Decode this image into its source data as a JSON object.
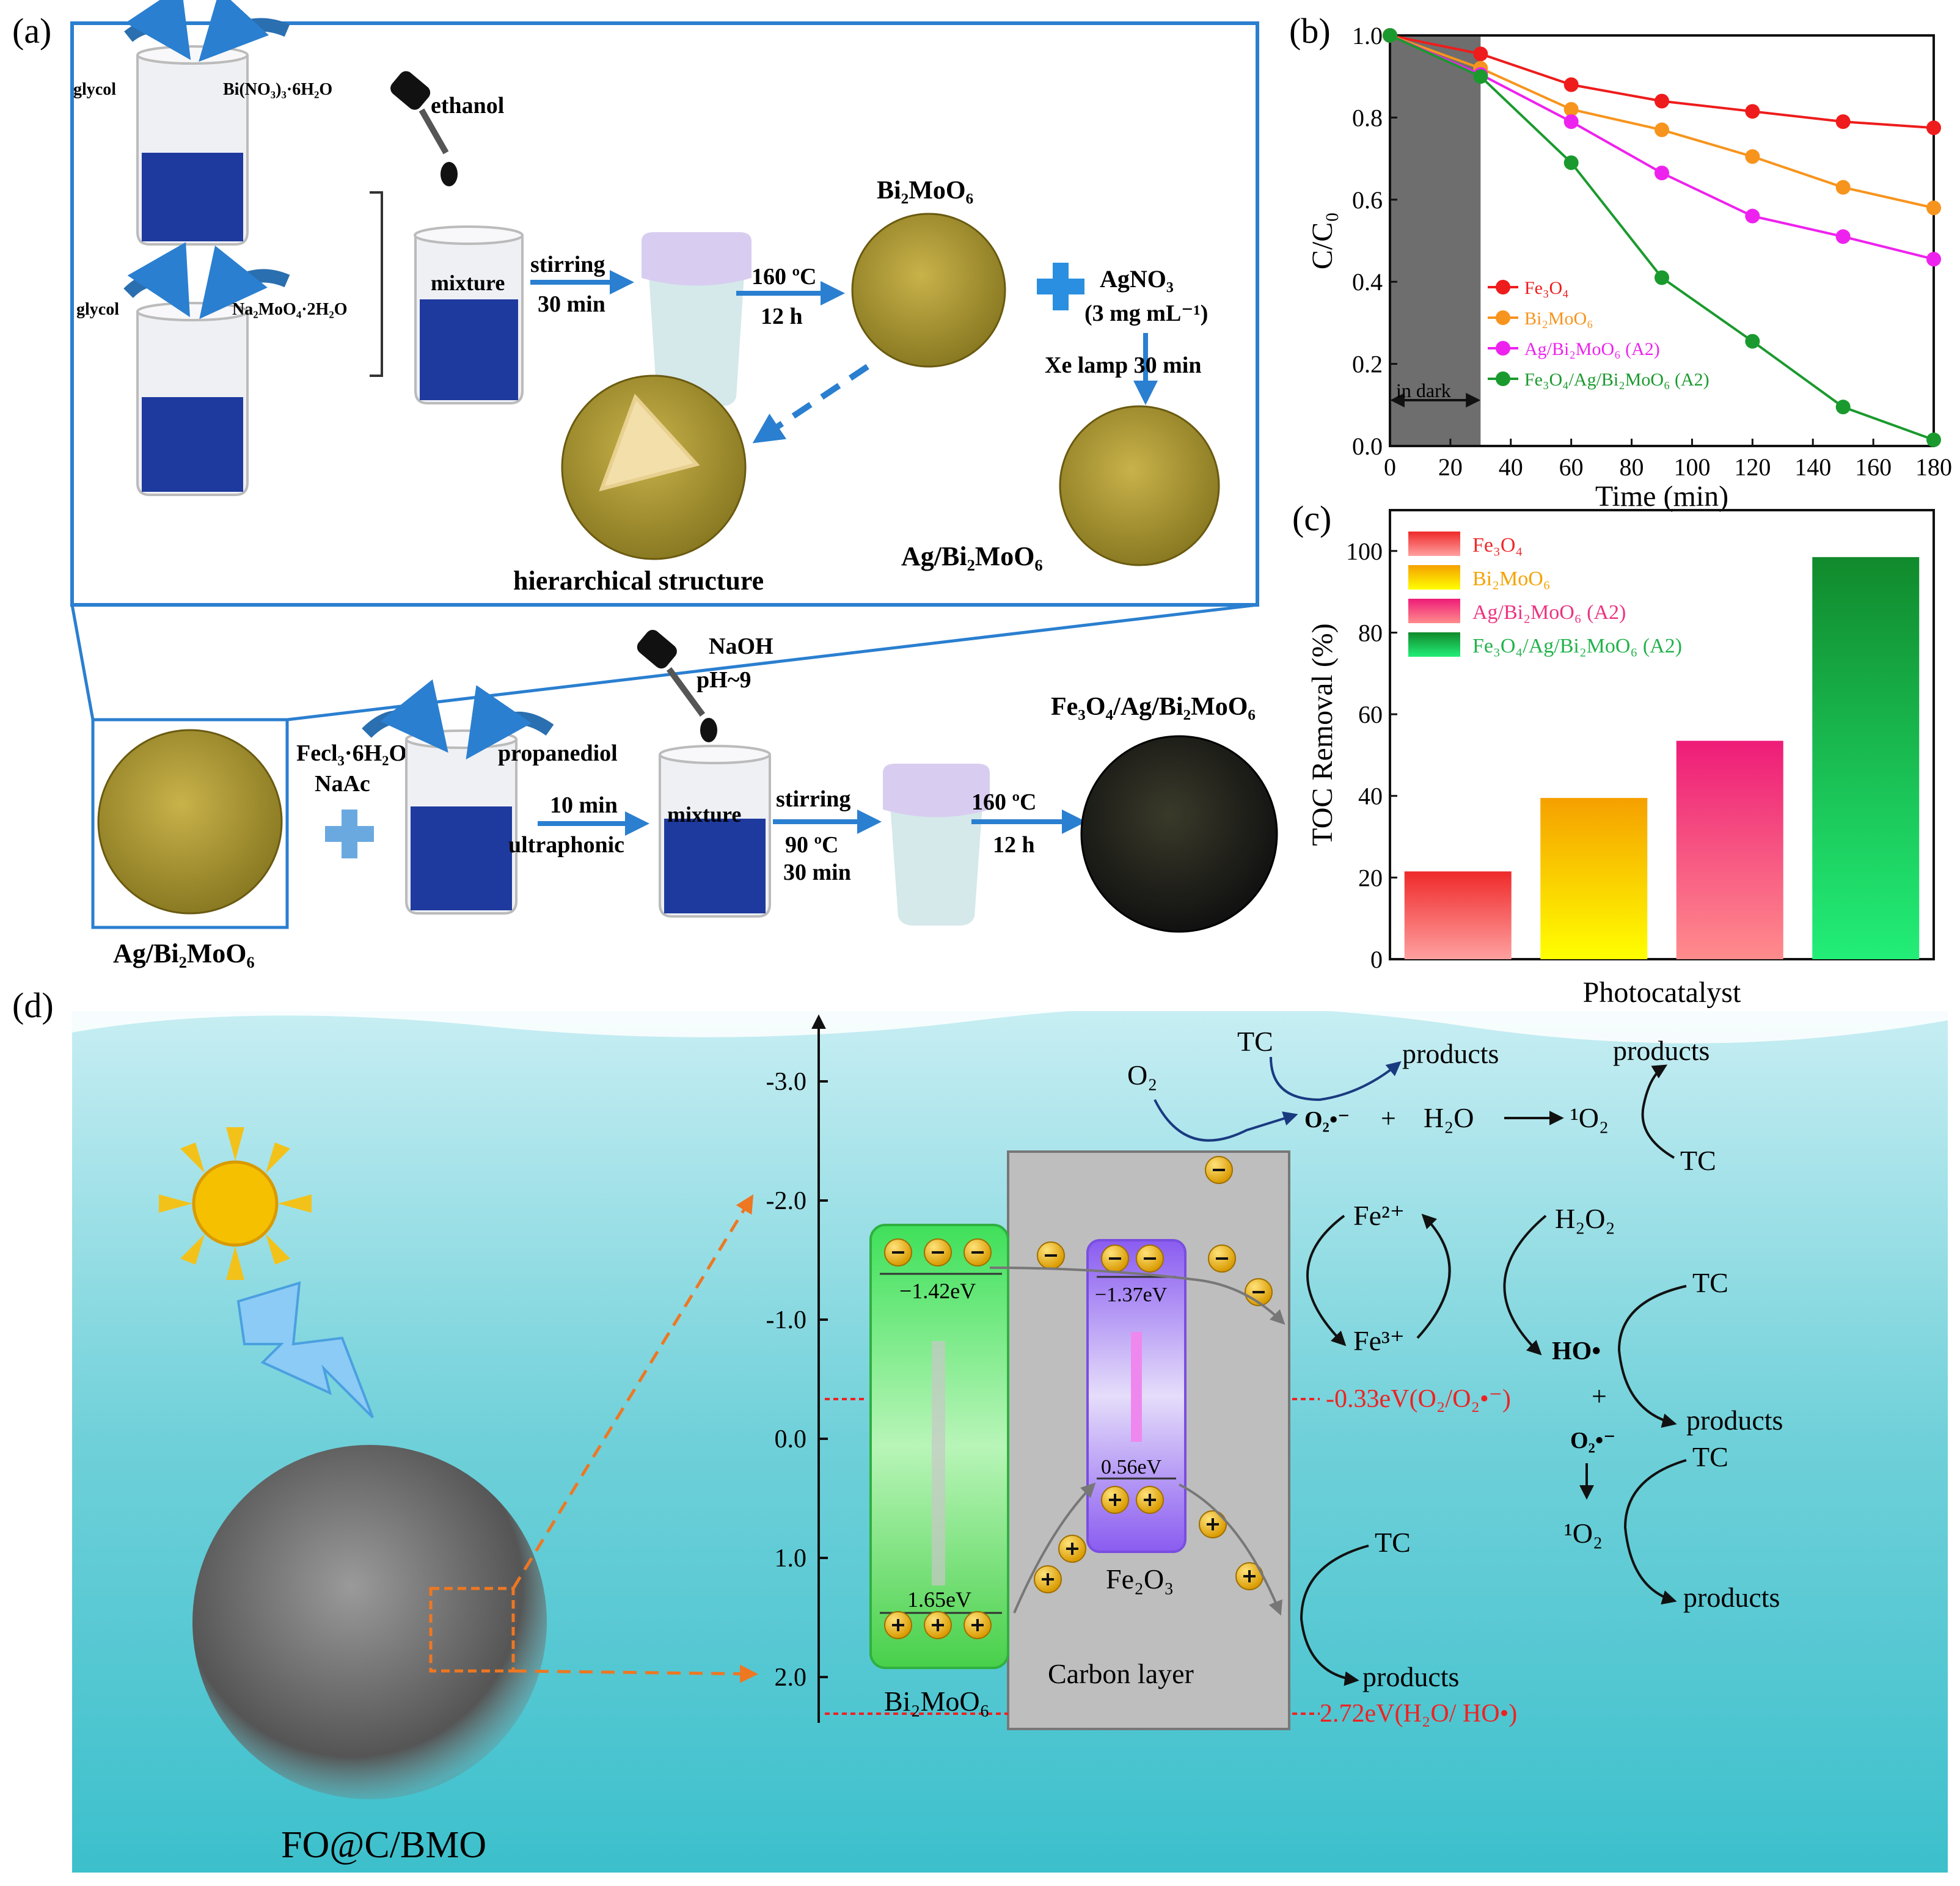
{
  "panel_a": {
    "label": "(a)",
    "glycol_1": "glycol",
    "bi_salt": "Bi(NO₃)₃·6H₂O",
    "ethanol": "ethanol",
    "glycol_2": "glycol",
    "mo_salt": "Na₂MoO₄·2H₂O",
    "mixture_1": "mixture",
    "stirring_1": "stirring",
    "time_1": "30 min",
    "temp_1": "160 ºC",
    "time_2": "12 h",
    "bmo_label": "Bi₂MoO₆",
    "agno3": "AgNO₃",
    "agno3_conc": "(3 mg mL⁻¹)",
    "xe_lamp": "Xe lamp  30 min",
    "hier_label": "hierarchical structure",
    "ag_bmo_label_1": "Ag/Bi₂MoO₆",
    "ag_bmo_label_2": "Ag/Bi₂MoO₆",
    "fecl3": "Fecl₃·6H₂O",
    "naac": "NaAc",
    "propanediol": "propanediol",
    "time_3": "10 min",
    "ultraphonic": "ultraphonic",
    "naoh": "NaOH",
    "ph": "pH~9",
    "mixture_2": "mixture",
    "stirring_2": "stirring",
    "temp_2": "90 ºC",
    "time_4": "30 min",
    "temp_3": "160 ºC",
    "time_5": "12 h",
    "final_label": "Fe₃O₄/Ag/Bi₂MoO₆"
  },
  "panel_b": {
    "label": "(b)",
    "dark_label": "in dark",
    "chart_data": {
      "type": "line",
      "xlabel": "Time (min)",
      "ylabel": "C/C₀",
      "xlim": [
        0,
        180
      ],
      "ylim": [
        0.0,
        1.0
      ],
      "xticks": [
        "0",
        "20",
        "40",
        "60",
        "80",
        "100",
        "120",
        "140",
        "160",
        "180"
      ],
      "yticks": [
        "0.0",
        "0.2",
        "0.4",
        "0.6",
        "0.8",
        "1.0"
      ],
      "dark_region": [
        0,
        30
      ],
      "legend_position": "bottom-left",
      "x": [
        0,
        30,
        60,
        90,
        120,
        150,
        180
      ],
      "series": [
        {
          "name": "Fe₃O₄",
          "color": "#ee1c1c",
          "values": [
            1.0,
            0.955,
            0.88,
            0.84,
            0.815,
            0.79,
            0.775
          ]
        },
        {
          "name": "Bi₂MoO₆",
          "color": "#f7941d",
          "values": [
            1.0,
            0.92,
            0.82,
            0.77,
            0.705,
            0.63,
            0.58
          ]
        },
        {
          "name": "Ag/Bi₂MoO₆ (A2)",
          "color": "#ee22ee",
          "values": [
            1.0,
            0.905,
            0.79,
            0.665,
            0.56,
            0.51,
            0.455
          ]
        },
        {
          "name": "Fe₃O₄/Ag/Bi₂MoO₆ (A2)",
          "color": "#1a9a2e",
          "values": [
            1.0,
            0.9,
            0.69,
            0.41,
            0.255,
            0.095,
            0.015
          ]
        }
      ]
    }
  },
  "panel_c": {
    "label": "(c)",
    "chart_data": {
      "type": "bar",
      "xlabel": "Photocatalyst",
      "ylabel": "TOC Removal (%)",
      "ylim": [
        0,
        110
      ],
      "yticks": [
        "0",
        "20",
        "40",
        "60",
        "80",
        "100"
      ],
      "legend_position": "top-left",
      "categories": [
        "Fe₃O₄",
        "Bi₂MoO₆",
        "Ag/Bi₂MoO₆ (A2)",
        "Fe₃O₄/Ag/Bi₂MoO₆ (A2)"
      ],
      "values": [
        21.5,
        39.5,
        53.5,
        98.5
      ],
      "colors": [
        "#ee2b2b",
        "#f5a300",
        "#ee3380",
        "#22b24c"
      ]
    }
  },
  "panel_d": {
    "label": "(d)",
    "yticks": [
      "-3.0",
      "-2.0",
      "-1.0",
      "0.0",
      "1.0",
      "2.0"
    ],
    "bmo_cb": "−1.42eV",
    "bmo_vb": "1.65eV",
    "bmo_name": "Bi₂MoO₆",
    "fe_cb": "−1.37eV",
    "fe_vb": "0.56eV",
    "fe_name": "Fe₂O₃",
    "carbon_layer": "Carbon layer",
    "o2_level": "-0.33eV(O₂/O₂•⁻)",
    "ho_level": "2.72eV(H₂O/ HO•)",
    "sem_label": "FO@C/BMO",
    "tc_1": "TC",
    "products_1": "products",
    "o2": "O₂",
    "o2_rad": "O₂•⁻",
    "plus_1": "+",
    "h2o": "H₂O",
    "singlet_1": "¹O₂",
    "products_2": "products",
    "tc_2": "TC",
    "fe2": "Fe²⁺",
    "h2o2": "H₂O₂",
    "fe3": "Fe³⁺",
    "tc_3": "TC",
    "ho_rad": "HO•",
    "plus_2": "+",
    "products_3": "products",
    "o2_rad_2": "O₂•⁻",
    "tc_4": "TC",
    "singlet_2": "¹O₂",
    "products_4": "products",
    "tc_5": "TC",
    "products_5": "products"
  }
}
